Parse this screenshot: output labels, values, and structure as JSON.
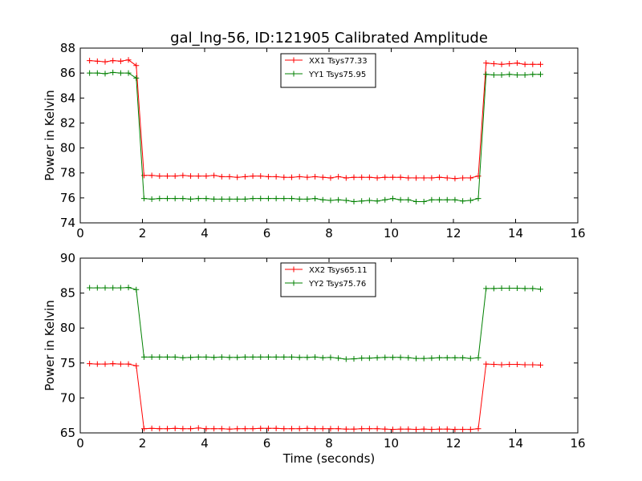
{
  "title": "gal_lng-56, ID:121905 Calibrated Amplitude",
  "chart_data": [
    {
      "type": "line",
      "title": "gal_lng-56, ID:121905 Calibrated Amplitude",
      "xlabel": "",
      "ylabel": "Power in Kelvin",
      "xlim": [
        0,
        16
      ],
      "ylim": [
        74,
        88
      ],
      "xticks": [
        0,
        2,
        4,
        6,
        8,
        10,
        12,
        14,
        16
      ],
      "yticks": [
        74,
        76,
        78,
        80,
        82,
        84,
        86,
        88
      ],
      "grid": false,
      "legend_position": "top-center",
      "series": [
        {
          "name": "XX1 Tsys77.33",
          "color": "#ff0000",
          "x": [
            0.3,
            0.55,
            0.8,
            1.05,
            1.3,
            1.55,
            1.8,
            2.05,
            2.3,
            2.55,
            2.8,
            3.05,
            3.3,
            3.55,
            3.8,
            4.05,
            4.3,
            4.55,
            4.8,
            5.05,
            5.3,
            5.55,
            5.8,
            6.05,
            6.3,
            6.55,
            6.8,
            7.05,
            7.3,
            7.55,
            7.8,
            8.05,
            8.3,
            8.55,
            8.8,
            9.05,
            9.3,
            9.55,
            9.8,
            10.05,
            10.3,
            10.55,
            10.8,
            11.05,
            11.3,
            11.55,
            11.8,
            12.05,
            12.3,
            12.55,
            12.8,
            13.05,
            13.3,
            13.55,
            13.8,
            14.05,
            14.3,
            14.55,
            14.8
          ],
          "values": [
            87.0,
            86.95,
            86.9,
            87.0,
            86.95,
            87.05,
            86.6,
            77.8,
            77.8,
            77.75,
            77.75,
            77.75,
            77.8,
            77.75,
            77.75,
            77.75,
            77.8,
            77.7,
            77.7,
            77.65,
            77.7,
            77.75,
            77.75,
            77.7,
            77.7,
            77.65,
            77.65,
            77.7,
            77.65,
            77.7,
            77.65,
            77.6,
            77.7,
            77.6,
            77.65,
            77.65,
            77.65,
            77.6,
            77.65,
            77.65,
            77.65,
            77.6,
            77.6,
            77.6,
            77.6,
            77.65,
            77.6,
            77.55,
            77.6,
            77.6,
            77.75,
            86.8,
            86.75,
            86.7,
            86.75,
            86.8,
            86.7,
            86.7,
            86.7
          ]
        },
        {
          "name": "YY1 Tsys75.95",
          "color": "#008000",
          "x": [
            0.3,
            0.55,
            0.8,
            1.05,
            1.3,
            1.55,
            1.8,
            2.05,
            2.3,
            2.55,
            2.8,
            3.05,
            3.3,
            3.55,
            3.8,
            4.05,
            4.3,
            4.55,
            4.8,
            5.05,
            5.3,
            5.55,
            5.8,
            6.05,
            6.3,
            6.55,
            6.8,
            7.05,
            7.3,
            7.55,
            7.8,
            8.05,
            8.3,
            8.55,
            8.8,
            9.05,
            9.3,
            9.55,
            9.8,
            10.05,
            10.3,
            10.55,
            10.8,
            11.05,
            11.3,
            11.55,
            11.8,
            12.05,
            12.3,
            12.55,
            12.8,
            13.05,
            13.3,
            13.55,
            13.8,
            14.05,
            14.3,
            14.55,
            14.8
          ],
          "values": [
            86.0,
            86.0,
            85.95,
            86.05,
            86.0,
            86.0,
            85.6,
            75.95,
            75.9,
            75.95,
            75.95,
            75.95,
            75.95,
            75.9,
            75.95,
            75.95,
            75.9,
            75.9,
            75.9,
            75.9,
            75.9,
            75.95,
            75.95,
            75.95,
            75.95,
            75.95,
            75.95,
            75.9,
            75.9,
            75.95,
            75.85,
            75.8,
            75.85,
            75.8,
            75.7,
            75.75,
            75.8,
            75.75,
            75.85,
            75.95,
            75.85,
            75.85,
            75.7,
            75.7,
            75.85,
            75.85,
            75.85,
            75.85,
            75.75,
            75.8,
            75.95,
            85.9,
            85.85,
            85.85,
            85.9,
            85.85,
            85.85,
            85.9,
            85.9
          ]
        }
      ]
    },
    {
      "type": "line",
      "title": "",
      "xlabel": "Time (seconds)",
      "ylabel": "Power in Kelvin",
      "xlim": [
        0,
        16
      ],
      "ylim": [
        65,
        90
      ],
      "xticks": [
        0,
        2,
        4,
        6,
        8,
        10,
        12,
        14,
        16
      ],
      "yticks": [
        65,
        70,
        75,
        80,
        85,
        90
      ],
      "grid": false,
      "legend_position": "top-center",
      "series": [
        {
          "name": "XX2 Tsys65.11",
          "color": "#ff0000",
          "x": [
            0.3,
            0.55,
            0.8,
            1.05,
            1.3,
            1.55,
            1.8,
            2.05,
            2.3,
            2.55,
            2.8,
            3.05,
            3.3,
            3.55,
            3.8,
            4.05,
            4.3,
            4.55,
            4.8,
            5.05,
            5.3,
            5.55,
            5.8,
            6.05,
            6.3,
            6.55,
            6.8,
            7.05,
            7.3,
            7.55,
            7.8,
            8.05,
            8.3,
            8.55,
            8.8,
            9.05,
            9.3,
            9.55,
            9.8,
            10.05,
            10.3,
            10.55,
            10.8,
            11.05,
            11.3,
            11.55,
            11.8,
            12.05,
            12.3,
            12.55,
            12.8,
            13.05,
            13.3,
            13.55,
            13.8,
            14.05,
            14.3,
            14.55,
            14.8
          ],
          "values": [
            74.9,
            74.85,
            74.85,
            74.9,
            74.85,
            74.85,
            74.6,
            65.6,
            65.65,
            65.6,
            65.6,
            65.65,
            65.6,
            65.6,
            65.7,
            65.6,
            65.6,
            65.6,
            65.55,
            65.6,
            65.6,
            65.6,
            65.65,
            65.65,
            65.65,
            65.6,
            65.6,
            65.6,
            65.65,
            65.6,
            65.6,
            65.6,
            65.6,
            65.55,
            65.55,
            65.6,
            65.6,
            65.6,
            65.55,
            65.5,
            65.55,
            65.55,
            65.5,
            65.55,
            65.5,
            65.55,
            65.55,
            65.5,
            65.5,
            65.5,
            65.6,
            74.85,
            74.8,
            74.75,
            74.8,
            74.8,
            74.75,
            74.75,
            74.7
          ]
        },
        {
          "name": "YY2 Tsys75.76",
          "color": "#008000",
          "x": [
            0.3,
            0.55,
            0.8,
            1.05,
            1.3,
            1.55,
            1.8,
            2.05,
            2.3,
            2.55,
            2.8,
            3.05,
            3.3,
            3.55,
            3.8,
            4.05,
            4.3,
            4.55,
            4.8,
            5.05,
            5.3,
            5.55,
            5.8,
            6.05,
            6.3,
            6.55,
            6.8,
            7.05,
            7.3,
            7.55,
            7.8,
            8.05,
            8.3,
            8.55,
            8.8,
            9.05,
            9.3,
            9.55,
            9.8,
            10.05,
            10.3,
            10.55,
            10.8,
            11.05,
            11.3,
            11.55,
            11.8,
            12.05,
            12.3,
            12.55,
            12.8,
            13.05,
            13.3,
            13.55,
            13.8,
            14.05,
            14.3,
            14.55,
            14.8
          ],
          "values": [
            85.75,
            85.75,
            85.75,
            85.75,
            85.75,
            85.8,
            85.5,
            75.85,
            75.85,
            75.85,
            75.85,
            75.85,
            75.75,
            75.8,
            75.85,
            75.85,
            75.8,
            75.85,
            75.8,
            75.8,
            75.85,
            75.85,
            75.85,
            75.85,
            75.85,
            75.85,
            75.85,
            75.8,
            75.8,
            75.85,
            75.75,
            75.8,
            75.7,
            75.55,
            75.6,
            75.7,
            75.7,
            75.75,
            75.8,
            75.8,
            75.8,
            75.75,
            75.65,
            75.65,
            75.7,
            75.75,
            75.75,
            75.75,
            75.75,
            75.65,
            75.75,
            85.65,
            85.65,
            85.7,
            85.7,
            85.7,
            85.65,
            85.65,
            85.55
          ]
        }
      ]
    }
  ]
}
